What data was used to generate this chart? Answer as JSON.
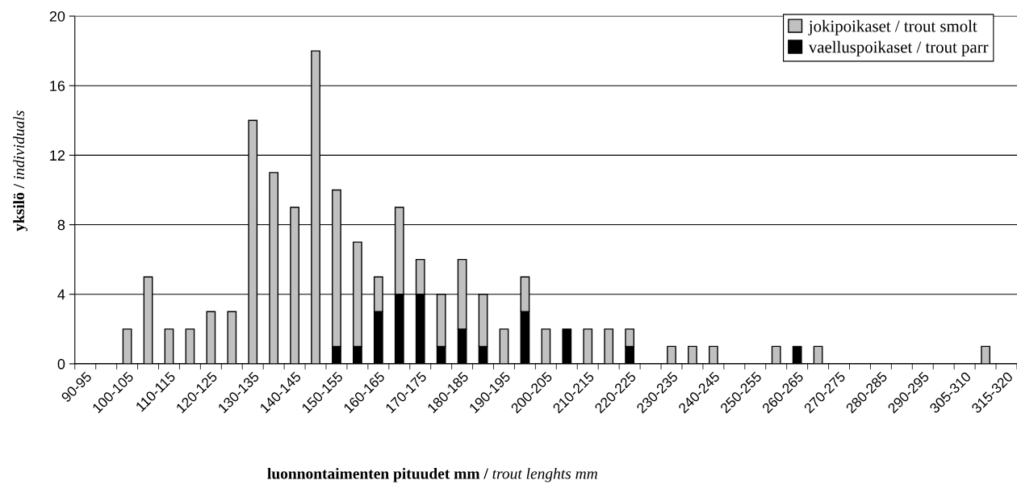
{
  "chart_data": {
    "type": "bar",
    "stacked": true,
    "xlabel": "luonnontaimenten pituudet mm / trout lenghts mm",
    "ylabel": "yksilö / individuals",
    "categories": [
      "90-95",
      null,
      "100-105",
      null,
      "110-115",
      null,
      "120-125",
      null,
      "130-135",
      null,
      "140-145",
      null,
      "150-155",
      null,
      "160-165",
      null,
      "170-175",
      null,
      "180-185",
      null,
      "190-195",
      null,
      "200-205",
      null,
      "210-215",
      null,
      "220-225",
      null,
      "230-235",
      null,
      "240-245",
      null,
      "250-255",
      null,
      "260-265",
      null,
      "270-275",
      null,
      "280-285",
      null,
      "290-295",
      null,
      "305-310",
      null,
      "315-320"
    ],
    "series": [
      {
        "name": "vaelluspoikaset / trout parr",
        "color": "#000000",
        "values": [
          0,
          0,
          0,
          0,
          0,
          0,
          0,
          0,
          0,
          0,
          0,
          0,
          1,
          1,
          3,
          4,
          4,
          1,
          2,
          1,
          0,
          3,
          0,
          2,
          0,
          0,
          1,
          0,
          0,
          0,
          0,
          0,
          0,
          0,
          1,
          0,
          0,
          0,
          0,
          0,
          0,
          0,
          0,
          0,
          0
        ]
      },
      {
        "name": "jokipoikaset / trout smolt",
        "color": "#c0c0c0",
        "values": [
          0,
          0,
          2,
          5,
          2,
          2,
          3,
          3,
          14,
          11,
          9,
          18,
          9,
          6,
          2,
          5,
          2,
          3,
          4,
          3,
          2,
          2,
          2,
          0,
          2,
          2,
          1,
          0,
          1,
          1,
          1,
          0,
          0,
          1,
          0,
          1,
          0,
          0,
          0,
          0,
          0,
          0,
          0,
          1,
          0
        ]
      }
    ],
    "ylim": [
      0,
      20
    ],
    "yticks": [
      0,
      4,
      8,
      12,
      16,
      20
    ],
    "grid": "y",
    "legend": "top right"
  }
}
